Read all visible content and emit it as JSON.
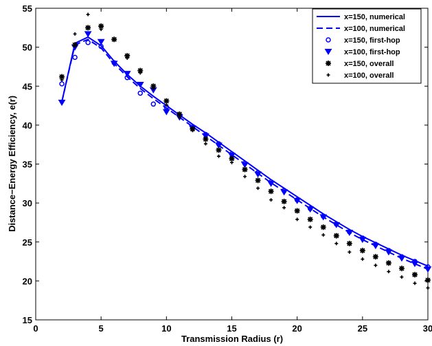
{
  "chart_data": {
    "type": "line",
    "xlabel": "Transmission Radius (r)",
    "ylabel": "Distance−Energy Efficiency, e(r)",
    "xlim": [
      0,
      30
    ],
    "xticks": [
      0,
      5,
      10,
      15,
      20,
      25,
      30
    ],
    "ylim": [
      15,
      55
    ],
    "yticks": [
      15,
      20,
      25,
      30,
      35,
      40,
      45,
      50,
      55
    ],
    "legend": "upper right",
    "x": [
      2,
      3,
      4,
      5,
      6,
      7,
      8,
      9,
      10,
      11,
      12,
      13,
      14,
      15,
      16,
      17,
      18,
      19,
      20,
      21,
      22,
      23,
      24,
      25,
      26,
      27,
      28,
      29,
      30
    ],
    "series": [
      {
        "name": "x=150, numerical",
        "color": "#0000ff",
        "line": "solid",
        "marker": "none",
        "values": [
          43,
          50.5,
          51.3,
          50.2,
          48.2,
          46.5,
          45,
          43.7,
          42.5,
          41.3,
          40.1,
          39,
          37.8,
          36.6,
          35.4,
          34.2,
          33,
          31.9,
          30.8,
          29.7,
          28.6,
          27.6,
          26.6,
          25.7,
          24.9,
          24.1,
          23.3,
          22.6,
          21.9
        ]
      },
      {
        "name": "x=100, numerical",
        "color": "#0000ff",
        "line": "dashed",
        "marker": "none",
        "values": [
          43,
          50.3,
          51,
          49.9,
          47.9,
          46.2,
          44.7,
          43.4,
          42.2,
          41,
          39.8,
          38.6,
          37.4,
          36.2,
          35,
          33.8,
          32.6,
          31.5,
          30.4,
          29.3,
          28.2,
          27.2,
          26.2,
          25.3,
          24.5,
          23.7,
          22.9,
          22.2,
          21.5
        ]
      },
      {
        "name": "x=150, first-hop",
        "color": "#0000ff",
        "line": "none",
        "marker": "circle",
        "values": [
          45.3,
          48.7,
          50.6,
          50.1,
          48,
          46.1,
          44.1,
          42.7,
          42.3,
          41.2,
          39.7,
          38.8,
          37.6,
          36.3,
          35.1,
          33.9,
          32.7,
          31.6,
          30.4,
          29.3,
          28.3,
          27.3,
          26.3,
          25.5,
          24.7,
          23.9,
          23.1,
          22.5,
          21.8
        ]
      },
      {
        "name": "x=100, first-hop",
        "color": "#0000ff",
        "line": "none",
        "marker": "triangle-down",
        "values": [
          42.9,
          50,
          51.7,
          50.7,
          47.9,
          46.6,
          45.2,
          44.5,
          41.7,
          41,
          39.6,
          38.6,
          37.4,
          36.1,
          34.9,
          33.7,
          32.5,
          31.4,
          30.3,
          29.2,
          28.2,
          27.2,
          26.2,
          25.3,
          24.5,
          23.7,
          22.9,
          22.2,
          21.5
        ]
      },
      {
        "name": "x=150, overall",
        "color": "#000000",
        "line": "none",
        "marker": "star",
        "values": [
          46.2,
          50.3,
          52.5,
          52.7,
          51,
          48.9,
          47,
          45,
          43.1,
          41.4,
          39.5,
          38.2,
          36.8,
          35.7,
          34.3,
          32.9,
          31.5,
          30.2,
          29,
          27.9,
          26.9,
          25.8,
          24.8,
          23.9,
          23.1,
          22.3,
          21.6,
          20.8,
          20.1
        ]
      },
      {
        "name": "x=100, overall",
        "color": "#000000",
        "line": "none",
        "marker": "plus",
        "values": [
          45.8,
          51.7,
          54.2,
          52.3,
          51,
          48.6,
          46.7,
          44.7,
          42.6,
          41,
          39.3,
          37.6,
          36,
          35.2,
          33.4,
          31.9,
          30.4,
          29.4,
          27.9,
          26.9,
          25.9,
          24.8,
          23.7,
          22.8,
          22,
          21.2,
          20.5,
          19.7,
          19.1
        ]
      }
    ]
  }
}
